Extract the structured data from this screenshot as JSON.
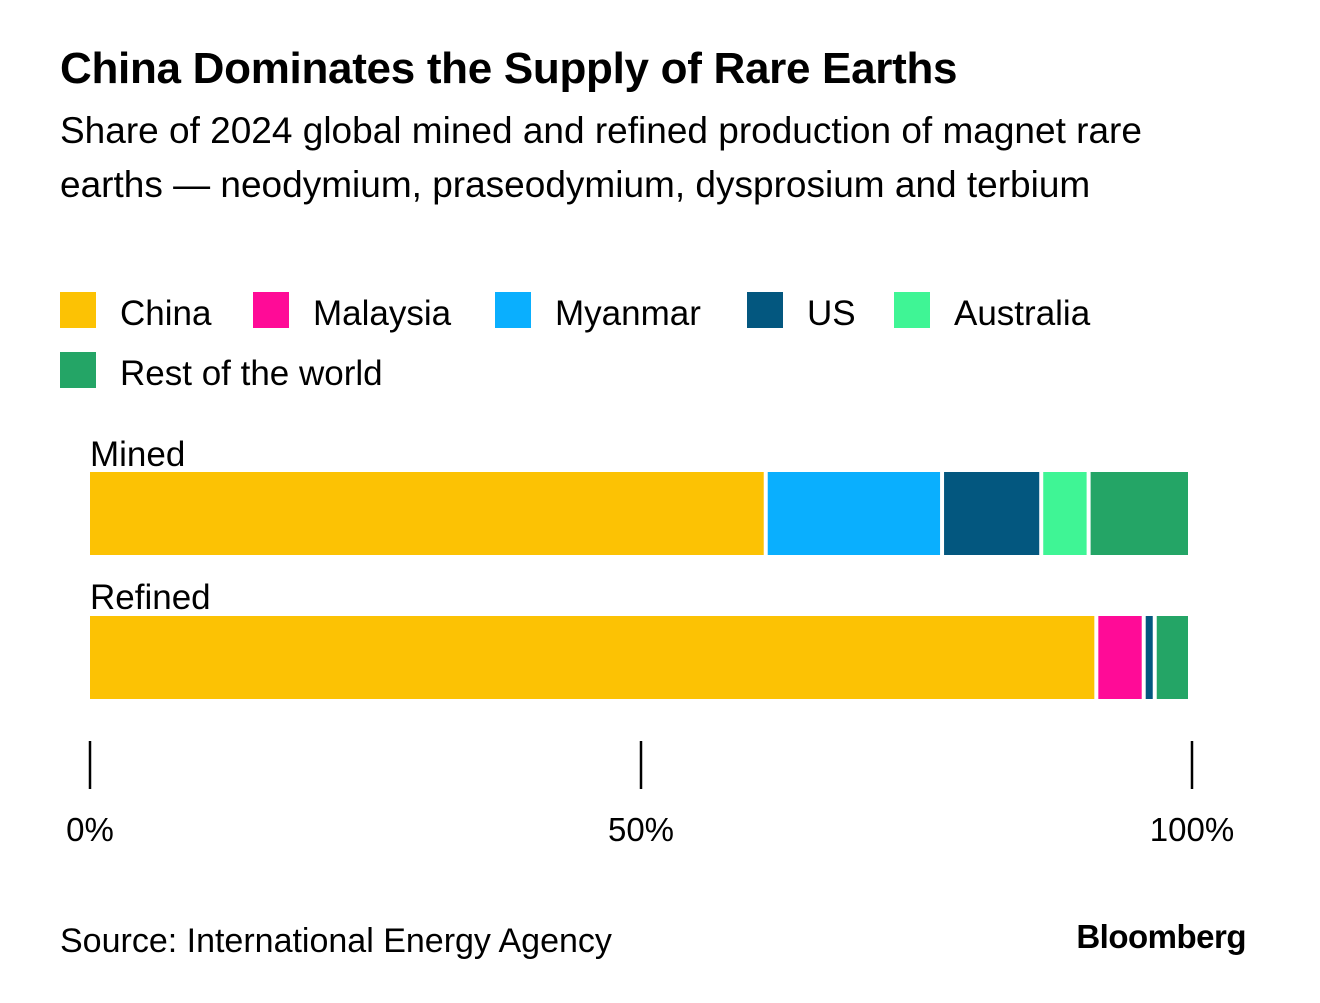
{
  "chart_data": {
    "type": "bar",
    "orientation": "horizontal",
    "stacked": true,
    "title": "China Dominates the Supply of Rare Earths",
    "subtitle": "Share of 2024 global mined and refined production of magnet rare earths — neodymium, praseodymium, dysprosium and terbium",
    "categories": [
      "Mined",
      "Refined"
    ],
    "series": [
      {
        "name": "China",
        "color": "#fcc204",
        "values": [
          61.5,
          91.5
        ]
      },
      {
        "name": "Malaysia",
        "color": "#ff0b97",
        "values": [
          0,
          4.3
        ]
      },
      {
        "name": "Myanmar",
        "color": "#0aaffe",
        "values": [
          16.0,
          0
        ]
      },
      {
        "name": "US",
        "color": "#03577f",
        "values": [
          9.0,
          1.0
        ]
      },
      {
        "name": "Australia",
        "color": "#3ff595",
        "values": [
          4.3,
          0
        ]
      },
      {
        "name": "Rest of the world",
        "color": "#24a566",
        "values": [
          9.2,
          3.2
        ]
      }
    ],
    "xlim": [
      0,
      100
    ],
    "xticks": [
      {
        "value": 0,
        "label": "0%"
      },
      {
        "value": 50,
        "label": "50%"
      },
      {
        "value": 100,
        "label": "100%"
      }
    ],
    "grid": false,
    "legend": "top-left"
  },
  "source": "Source: International Energy Agency",
  "brand": "Bloomberg"
}
